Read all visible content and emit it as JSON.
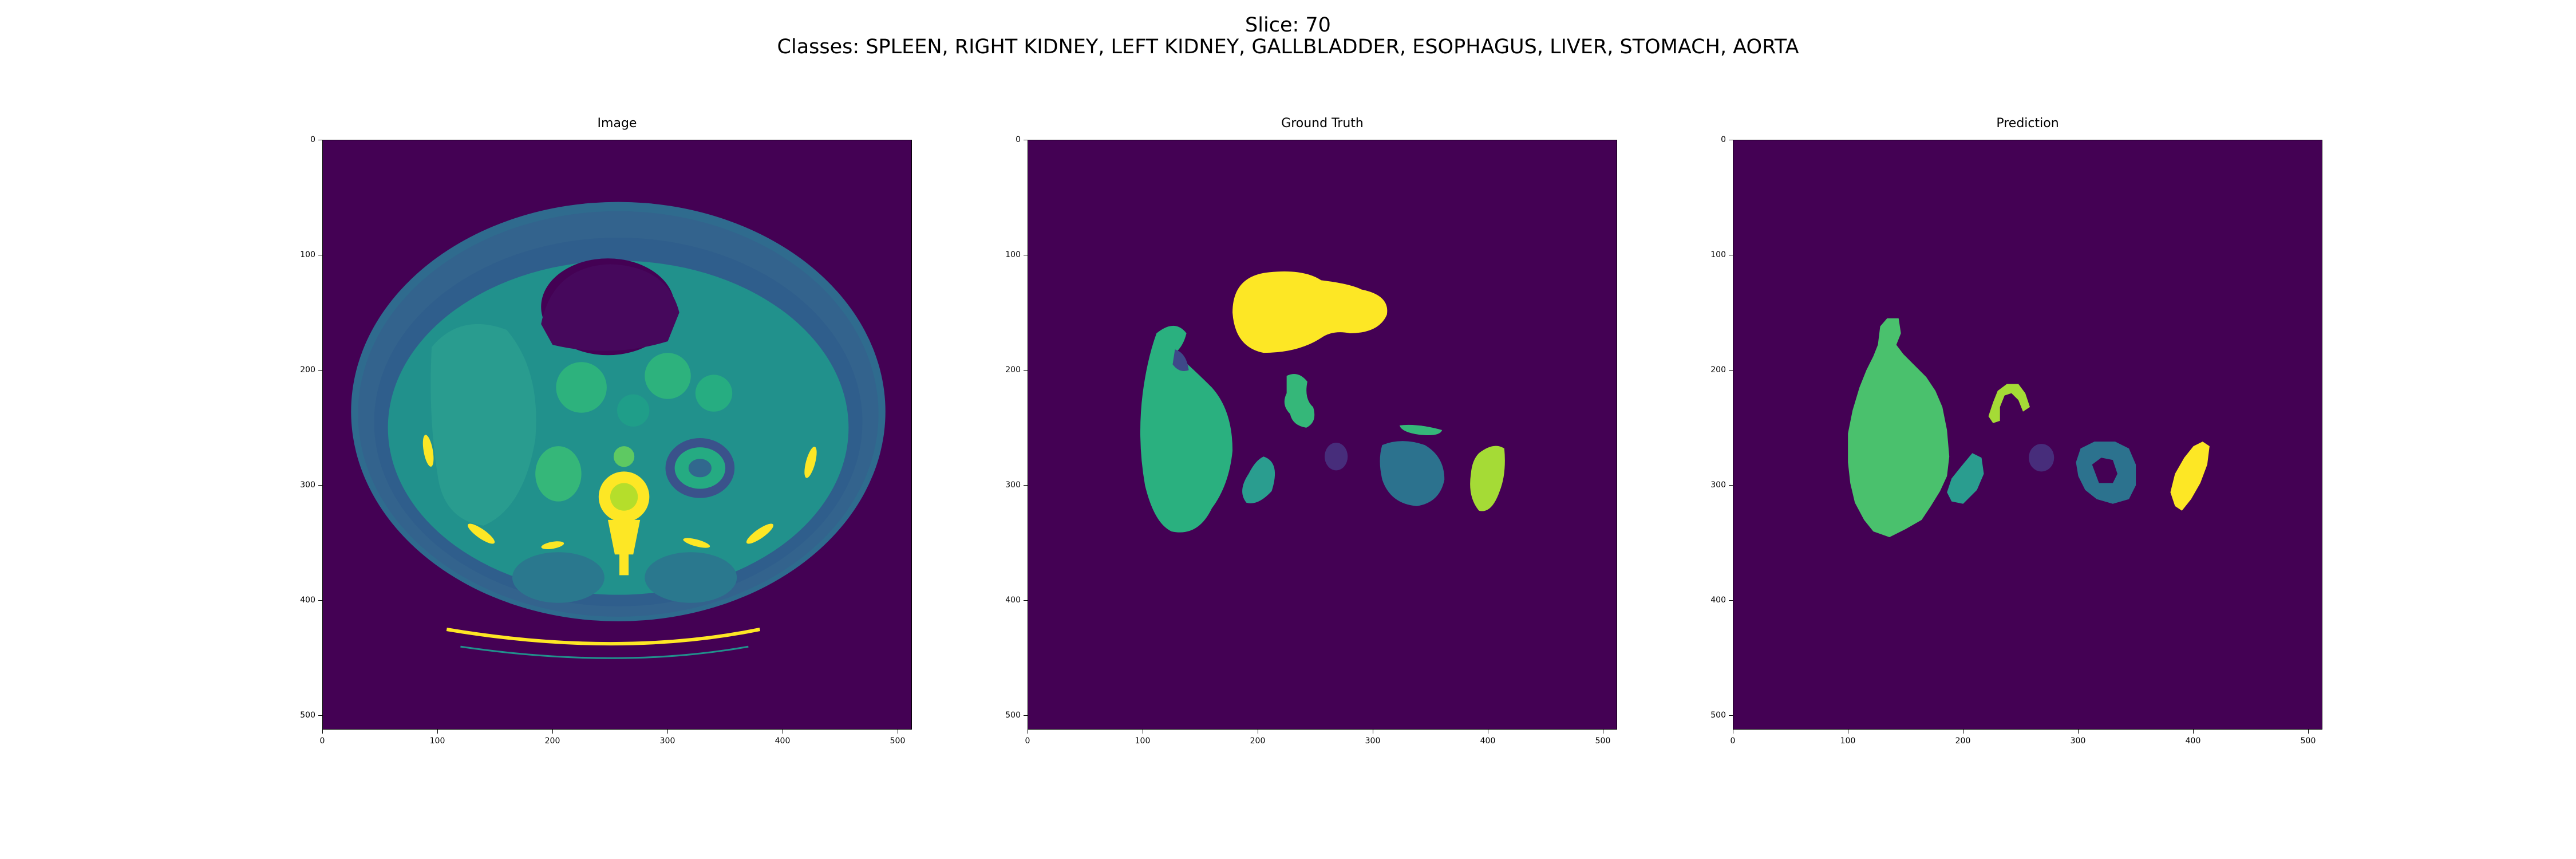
{
  "figure": {
    "suptitle_line1": "Slice: 70",
    "suptitle_line2": "Classes: SPLEEN, RIGHT KIDNEY, LEFT KIDNEY, GALLBLADDER, ESOPHAGUS, LIVER, STOMACH, AORTA"
  },
  "panels": [
    {
      "title": "Image"
    },
    {
      "title": "Ground Truth"
    },
    {
      "title": "Prediction"
    }
  ],
  "axes": {
    "x_ticks": [
      "0",
      "100",
      "200",
      "300",
      "400",
      "500"
    ],
    "y_ticks": [
      "0",
      "100",
      "200",
      "300",
      "400",
      "500"
    ],
    "extent": [
      0,
      512
    ]
  },
  "colors": {
    "background": "#440154",
    "liver_green": "#2ab07f",
    "liver_pred_green": "#4ac16d",
    "stomach_yellow": "#fde725",
    "kidney_teal": "#2c728e",
    "gallbladder_lime": "#a5db36",
    "spleen_teal": "#20a486",
    "aorta_purple": "#472d7b",
    "vessel_green": "#35b779"
  }
}
